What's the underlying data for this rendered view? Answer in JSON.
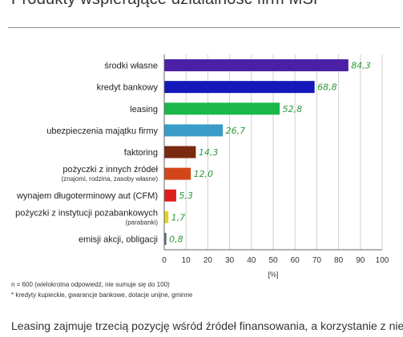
{
  "title": "Produkty wspierające działalność firm MŚP",
  "chart_data": {
    "type": "bar",
    "orientation": "horizontal",
    "categories": [
      [
        "środki własne"
      ],
      [
        "kredyt bankowy"
      ],
      [
        "leasing"
      ],
      [
        "ubezpieczenia majątku firmy"
      ],
      [
        "faktoring"
      ],
      [
        "pożyczki z innych źródeł",
        "(znajomi, rodzina, zasoby własne)"
      ],
      [
        "wynajem długoterminowy aut (CFM)"
      ],
      [
        "pożyczki z instytucji pozabankowych",
        "(parabanki)"
      ],
      [
        "emisji akcji, obligacji"
      ]
    ],
    "values": [
      84.3,
      68.8,
      52.8,
      26.7,
      14.3,
      12.0,
      5.3,
      1.7,
      0.8
    ],
    "value_labels": [
      "84,3",
      "68,8",
      "52,8",
      "26,7",
      "14,3",
      "12,0",
      "5,3",
      "1,7",
      "0,8"
    ],
    "colors": [
      "#4b1fa6",
      "#1418b8",
      "#1ab84a",
      "#3a9cc8",
      "#7a2a10",
      "#d2461a",
      "#dd1e1e",
      "#e9d21a",
      "#5a6a78"
    ],
    "xticks": [
      0,
      10,
      20,
      30,
      40,
      50,
      60,
      70,
      80,
      90,
      100
    ],
    "xlim": [
      0,
      100
    ],
    "xlabel": "[%]",
    "grid": true
  },
  "notes": [
    "n = 600 (wielokrotna odpowiedź, nie sumuje się do 100)",
    "* kredyty kupieckie, gwarancje bankowe, dotacje unijne, gminne"
  ],
  "paragraph": "Leasing zajmuje trzecią pozycję wśród źródeł finansowania, a korzystanie z niego"
}
